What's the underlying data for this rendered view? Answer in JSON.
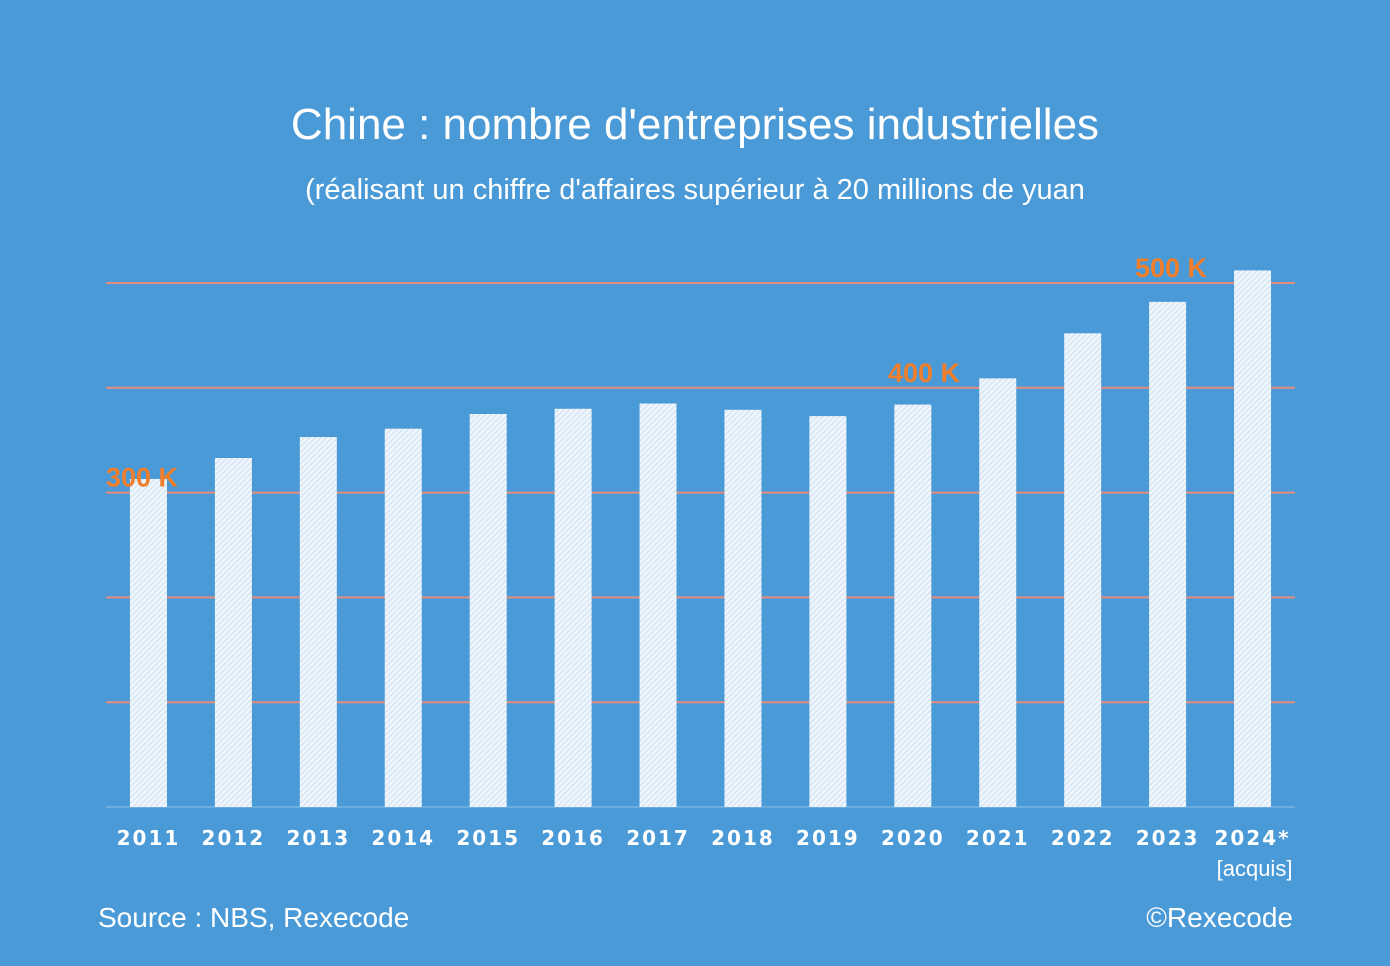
{
  "chart_data": {
    "type": "bar",
    "title": "Chine : nombre d'entreprises industrielles",
    "subtitle": "(réalisant un chiffre d'affaires supérieur à 20 millions de yuan",
    "categories": [
      "2011",
      "2012",
      "2013",
      "2014",
      "2015",
      "2016",
      "2017",
      "2018",
      "2019",
      "2020",
      "2021",
      "2022",
      "2023",
      "2024*"
    ],
    "category_note": "[acquis]",
    "values": [
      313,
      333,
      353,
      361,
      375,
      380,
      385,
      379,
      373,
      384,
      409,
      452,
      482,
      512
    ],
    "ylim": [
      0,
      550
    ],
    "gridlines": [
      100,
      200,
      300,
      400,
      500
    ],
    "gridline_labels": [
      {
        "value": 300,
        "text": "300 K"
      },
      {
        "value": 400,
        "text": "400 K"
      },
      {
        "value": 500,
        "text": "500 K"
      }
    ],
    "grid": true,
    "xlabel": "",
    "ylabel": ""
  },
  "footer": {
    "source": "Source : NBS, Rexecode",
    "copyright": "©Rexecode"
  },
  "colors": {
    "background": "#4a9ad7",
    "bar": "#e8f1fa",
    "gridline": "#e58c7a",
    "label_accent": "#f07e2b",
    "text": "#ffffff"
  }
}
